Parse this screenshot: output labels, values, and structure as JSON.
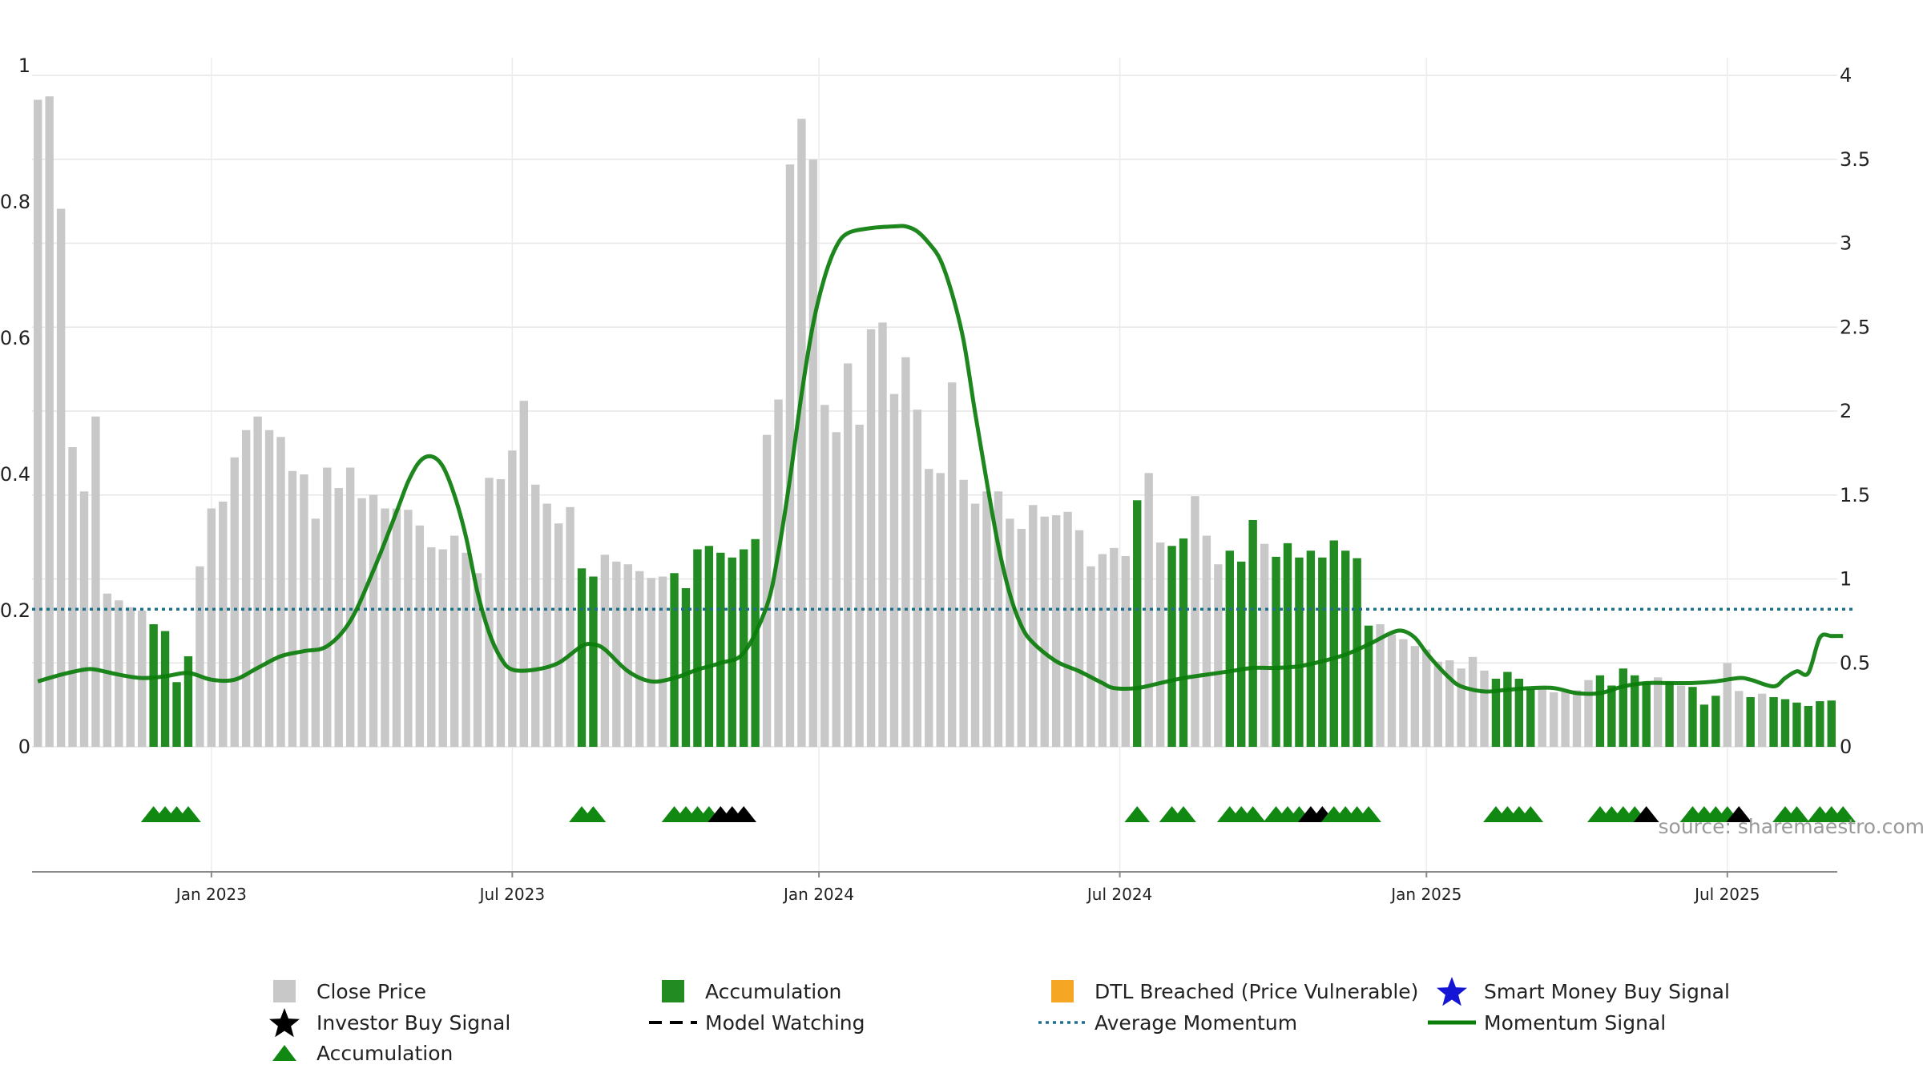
{
  "source": "source: sharemaestro.com",
  "colors": {
    "price_bar": "#c8c8c8",
    "accum_bar": "#228b22",
    "momentum": "#0a7d0a",
    "avg_momentum": "#1f6f8b",
    "grid": "#e6e6e6",
    "triangle_green": "#118811",
    "triangle_black": "#000000",
    "dtl": "#f5a623",
    "smart_star": "#1515d6"
  },
  "legend": [
    {
      "label": "Close Price",
      "marker": "gray-square"
    },
    {
      "label": "Accumulation",
      "marker": "green-square"
    },
    {
      "label": "DTL Breached (Price Vulnerable)",
      "marker": "orange-square"
    },
    {
      "label": "Smart Money Buy Signal",
      "marker": "blue-star"
    },
    {
      "label": "Investor Buy Signal",
      "marker": "black-star"
    },
    {
      "label": "Model Watching",
      "marker": "dashed-line"
    },
    {
      "label": "Average Momentum",
      "marker": "dotted-line"
    },
    {
      "label": "Momentum Signal",
      "marker": "green-line"
    },
    {
      "label": "Accumulation",
      "marker": "green-triangle"
    }
  ],
  "chart_data": {
    "type": "bar",
    "x_ticks": [
      {
        "label": "Jan 2023",
        "week": 15.5
      },
      {
        "label": "Jul 2023",
        "week": 41.5
      },
      {
        "label": "Jan 2024",
        "week": 68
      },
      {
        "label": "Jul 2024",
        "week": 94
      },
      {
        "label": "Jan 2025",
        "week": 120.5
      },
      {
        "label": "Jul 2025",
        "week": 146.5
      }
    ],
    "x_range": [
      0,
      158
    ],
    "left_axis": {
      "range": [
        0,
        1
      ],
      "ticks": [
        "0",
        "0.2",
        "0.4",
        "0.6",
        "0.8",
        "1"
      ],
      "tick_values": [
        0,
        0.2,
        0.4,
        0.6,
        0.8,
        1
      ]
    },
    "right_axis": {
      "range": [
        0,
        4
      ],
      "ticks": [
        "0",
        "0.5",
        "1",
        "1.5",
        "2",
        "2.5",
        "3",
        "3.5",
        "4"
      ],
      "tick_values": [
        0,
        0.5,
        1,
        1.5,
        2,
        2.5,
        3,
        3.5,
        4
      ]
    },
    "average_momentum": 0.82,
    "close_price": [
      0.95,
      0.955,
      0.79,
      0.44,
      0.375,
      0.485,
      0.225,
      0.215,
      0.205,
      0.2,
      0.18,
      0.17,
      0.095,
      0.133,
      0.265,
      0.35,
      0.36,
      0.425,
      0.465,
      0.485,
      0.465,
      0.455,
      0.405,
      0.4,
      0.335,
      0.41,
      0.38,
      0.41,
      0.365,
      0.37,
      0.35,
      0.35,
      0.348,
      0.325,
      0.293,
      0.29,
      0.31,
      0.285,
      0.255,
      0.395,
      0.393,
      0.435,
      0.508,
      0.385,
      0.357,
      0.328,
      0.352,
      0.262,
      0.25,
      0.282,
      0.272,
      0.268,
      0.258,
      0.248,
      0.25,
      0.255,
      0.233,
      0.29,
      0.295,
      0.285,
      0.278,
      0.29,
      0.305,
      0.458,
      0.51,
      0.855,
      0.922,
      0.862,
      0.502,
      0.462,
      0.563,
      0.473,
      0.613,
      0.623,
      0.518,
      0.572,
      0.495,
      0.408,
      0.402,
      0.535,
      0.392,
      0.357,
      0.375,
      0.375,
      0.335,
      0.32,
      0.355,
      0.338,
      0.34,
      0.345,
      0.318,
      0.265,
      0.283,
      0.292,
      0.28,
      0.362,
      0.402,
      0.3,
      0.295,
      0.306,
      0.368,
      0.31,
      0.268,
      0.288,
      0.272,
      0.333,
      0.298,
      0.279,
      0.299,
      0.278,
      0.288,
      0.278,
      0.303,
      0.288,
      0.277,
      0.178,
      0.18,
      0.165,
      0.158,
      0.148,
      0.143,
      0.125,
      0.127,
      0.115,
      0.132,
      0.112,
      0.1,
      0.11,
      0.1,
      0.085,
      0.085,
      0.08,
      0.082,
      0.083,
      0.098,
      0.105,
      0.09,
      0.115,
      0.105,
      0.095,
      0.102,
      0.095,
      0.09,
      0.088,
      0.062,
      0.075,
      0.123,
      0.082,
      0.073,
      0.078,
      0.073,
      0.07,
      0.065,
      0.06,
      0.067,
      0.068
    ],
    "accumulation_weeks": [
      10,
      11,
      12,
      13,
      47,
      48,
      55,
      56,
      57,
      58,
      59,
      60,
      61,
      62,
      95,
      98,
      99,
      103,
      104,
      105,
      107,
      108,
      109,
      110,
      111,
      112,
      113,
      114,
      115,
      126,
      127,
      128,
      129,
      135,
      136,
      137,
      138,
      139,
      141,
      143,
      144,
      145,
      148,
      150,
      151,
      152,
      153,
      154,
      155,
      156,
      157
    ],
    "momentum_signal": [
      [
        0,
        0.39
      ],
      [
        2,
        0.43
      ],
      [
        4,
        0.46
      ],
      [
        5,
        0.46
      ],
      [
        7,
        0.43
      ],
      [
        9,
        0.41
      ],
      [
        11,
        0.42
      ],
      [
        13,
        0.44
      ],
      [
        15,
        0.4
      ],
      [
        17,
        0.4
      ],
      [
        19,
        0.47
      ],
      [
        21,
        0.54
      ],
      [
        23,
        0.57
      ],
      [
        25,
        0.6
      ],
      [
        27,
        0.75
      ],
      [
        29,
        1.05
      ],
      [
        31,
        1.4
      ],
      [
        32,
        1.58
      ],
      [
        33,
        1.7
      ],
      [
        34,
        1.73
      ],
      [
        35,
        1.67
      ],
      [
        36,
        1.5
      ],
      [
        37,
        1.25
      ],
      [
        38,
        0.92
      ],
      [
        39,
        0.68
      ],
      [
        40,
        0.53
      ],
      [
        41,
        0.46
      ],
      [
        43,
        0.46
      ],
      [
        45,
        0.5
      ],
      [
        47,
        0.6
      ],
      [
        48,
        0.61
      ],
      [
        49,
        0.58
      ],
      [
        51,
        0.45
      ],
      [
        53,
        0.39
      ],
      [
        55,
        0.41
      ],
      [
        57,
        0.46
      ],
      [
        59,
        0.5
      ],
      [
        61,
        0.56
      ],
      [
        63,
        0.84
      ],
      [
        64,
        1.16
      ],
      [
        65,
        1.6
      ],
      [
        66,
        2.1
      ],
      [
        67,
        2.52
      ],
      [
        68,
        2.8
      ],
      [
        69,
        2.98
      ],
      [
        70,
        3.06
      ],
      [
        72,
        3.09
      ],
      [
        74,
        3.1
      ],
      [
        75,
        3.1
      ],
      [
        76,
        3.07
      ],
      [
        77,
        3.0
      ],
      [
        78,
        2.9
      ],
      [
        79,
        2.7
      ],
      [
        80,
        2.42
      ],
      [
        81,
        1.99
      ],
      [
        82,
        1.58
      ],
      [
        83,
        1.2
      ],
      [
        84,
        0.91
      ],
      [
        85,
        0.72
      ],
      [
        86,
        0.62
      ],
      [
        88,
        0.51
      ],
      [
        90,
        0.45
      ],
      [
        92,
        0.38
      ],
      [
        93,
        0.35
      ],
      [
        95,
        0.35
      ],
      [
        97,
        0.38
      ],
      [
        99,
        0.41
      ],
      [
        101,
        0.43
      ],
      [
        103,
        0.45
      ],
      [
        105,
        0.47
      ],
      [
        107,
        0.47
      ],
      [
        109,
        0.48
      ],
      [
        111,
        0.51
      ],
      [
        113,
        0.55
      ],
      [
        115,
        0.61
      ],
      [
        117,
        0.68
      ],
      [
        118,
        0.69
      ],
      [
        119,
        0.65
      ],
      [
        120,
        0.56
      ],
      [
        121,
        0.48
      ],
      [
        122,
        0.41
      ],
      [
        123,
        0.36
      ],
      [
        125,
        0.33
      ],
      [
        127,
        0.34
      ],
      [
        129,
        0.35
      ],
      [
        131,
        0.35
      ],
      [
        133,
        0.32
      ],
      [
        135,
        0.32
      ],
      [
        137,
        0.36
      ],
      [
        139,
        0.38
      ],
      [
        141,
        0.38
      ],
      [
        143,
        0.38
      ],
      [
        145,
        0.39
      ],
      [
        147,
        0.41
      ],
      [
        148,
        0.4
      ],
      [
        150,
        0.36
      ],
      [
        151,
        0.41
      ],
      [
        152,
        0.45
      ],
      [
        153,
        0.44
      ],
      [
        154,
        0.65
      ],
      [
        155,
        0.66
      ],
      [
        156,
        0.66
      ]
    ],
    "triangles": [
      {
        "week": 10,
        "color": "green"
      },
      {
        "week": 11,
        "color": "green"
      },
      {
        "week": 12,
        "color": "green"
      },
      {
        "week": 13,
        "color": "green"
      },
      {
        "week": 47,
        "color": "green"
      },
      {
        "week": 48,
        "color": "green"
      },
      {
        "week": 55,
        "color": "green"
      },
      {
        "week": 56,
        "color": "green"
      },
      {
        "week": 57,
        "color": "green"
      },
      {
        "week": 58,
        "color": "green"
      },
      {
        "week": 59,
        "color": "black"
      },
      {
        "week": 60,
        "color": "black"
      },
      {
        "week": 61,
        "color": "black"
      },
      {
        "week": 95,
        "color": "green"
      },
      {
        "week": 98,
        "color": "green"
      },
      {
        "week": 99,
        "color": "green"
      },
      {
        "week": 103,
        "color": "green"
      },
      {
        "week": 104,
        "color": "green"
      },
      {
        "week": 105,
        "color": "green"
      },
      {
        "week": 107,
        "color": "green"
      },
      {
        "week": 108,
        "color": "green"
      },
      {
        "week": 109,
        "color": "green"
      },
      {
        "week": 110,
        "color": "black"
      },
      {
        "week": 111,
        "color": "black"
      },
      {
        "week": 112,
        "color": "green"
      },
      {
        "week": 113,
        "color": "green"
      },
      {
        "week": 114,
        "color": "green"
      },
      {
        "week": 115,
        "color": "green"
      },
      {
        "week": 126,
        "color": "green"
      },
      {
        "week": 127,
        "color": "green"
      },
      {
        "week": 128,
        "color": "green"
      },
      {
        "week": 129,
        "color": "green"
      },
      {
        "week": 135,
        "color": "green"
      },
      {
        "week": 136,
        "color": "green"
      },
      {
        "week": 137,
        "color": "green"
      },
      {
        "week": 138,
        "color": "green"
      },
      {
        "week": 139,
        "color": "black"
      },
      {
        "week": 143,
        "color": "green"
      },
      {
        "week": 144,
        "color": "green"
      },
      {
        "week": 145,
        "color": "green"
      },
      {
        "week": 146,
        "color": "green"
      },
      {
        "week": 147,
        "color": "black"
      },
      {
        "week": 151,
        "color": "green"
      },
      {
        "week": 152,
        "color": "green"
      },
      {
        "week": 154,
        "color": "green"
      },
      {
        "week": 155,
        "color": "green"
      },
      {
        "week": 156,
        "color": "green"
      }
    ]
  }
}
